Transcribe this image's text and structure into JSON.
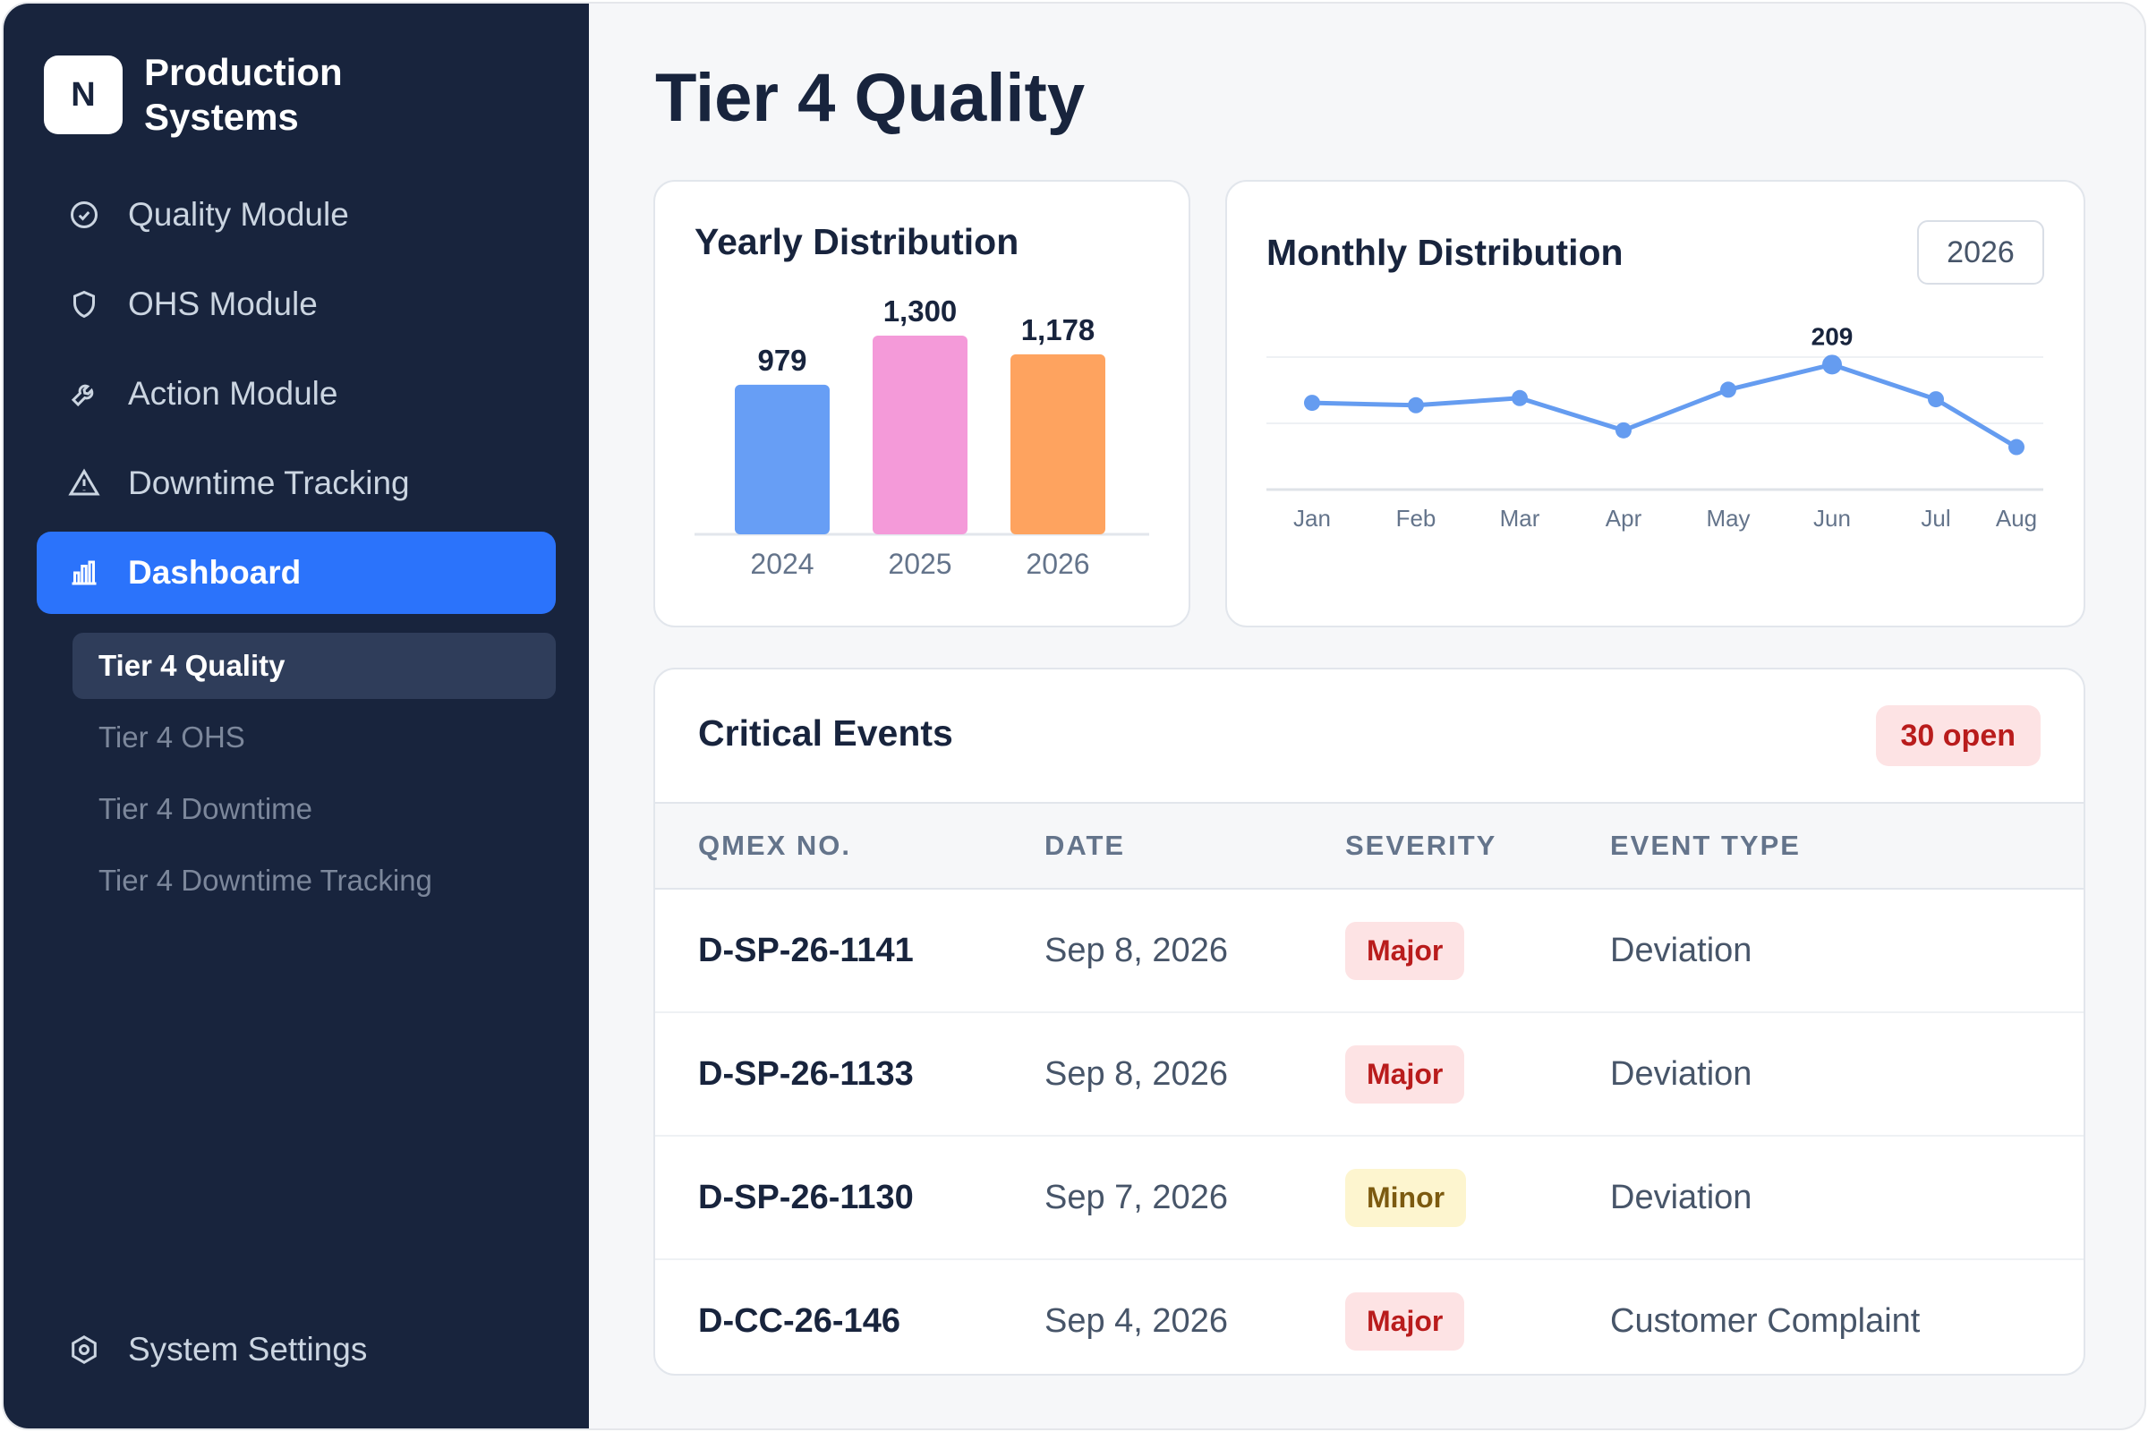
{
  "brand": {
    "logo_letter": "N",
    "name": "Production Systems"
  },
  "nav": {
    "items": [
      {
        "label": "Quality Module",
        "icon": "quality-icon"
      },
      {
        "label": "OHS Module",
        "icon": "shield-icon"
      },
      {
        "label": "Action Module",
        "icon": "wrench-icon"
      },
      {
        "label": "Downtime Tracking",
        "icon": "warning-icon"
      },
      {
        "label": "Dashboard",
        "icon": "bar-chart-icon",
        "active": true
      }
    ],
    "sub_items": [
      {
        "label": "Tier 4 Quality",
        "active": true
      },
      {
        "label": "Tier 4 OHS"
      },
      {
        "label": "Tier 4 Downtime"
      },
      {
        "label": "Tier 4 Downtime Tracking"
      }
    ],
    "settings": {
      "label": "System Settings",
      "icon": "settings-icon"
    }
  },
  "page": {
    "title": "Tier 4 Quality"
  },
  "yearly": {
    "title": "Yearly Distribution"
  },
  "monthly": {
    "title": "Monthly Distribution",
    "year_selector": "2026"
  },
  "events": {
    "title": "Critical Events",
    "badge": "30 open",
    "columns": [
      "QMEX NO.",
      "DATE",
      "SEVERITY",
      "EVENT TYPE"
    ],
    "rows": [
      {
        "qmex": "D-SP-26-1141",
        "date": "Sep 8, 2026",
        "severity": "Major",
        "type": "Deviation"
      },
      {
        "qmex": "D-SP-26-1133",
        "date": "Sep 8, 2026",
        "severity": "Major",
        "type": "Deviation"
      },
      {
        "qmex": "D-SP-26-1130",
        "date": "Sep 7, 2026",
        "severity": "Minor",
        "type": "Deviation"
      },
      {
        "qmex": "D-CC-26-146",
        "date": "Sep 4, 2026",
        "severity": "Major",
        "type": "Customer Complaint"
      }
    ]
  },
  "colors": {
    "sidebar_bg": "#18243d",
    "accent": "#2b73fb",
    "bar_2024": "#679ef5",
    "bar_2025": "#f49ad9",
    "bar_2026": "#fea35f",
    "line": "#659cf0",
    "major": "#b91c1c",
    "minor": "#7c5a10"
  },
  "chart_data": [
    {
      "type": "bar",
      "title": "Yearly Distribution",
      "categories": [
        "2024",
        "2025",
        "2026"
      ],
      "values": [
        979,
        1300,
        1178
      ],
      "data_labels": [
        "979",
        "1,300",
        "1,178"
      ],
      "ylim": [
        0,
        1300
      ],
      "grid": false
    },
    {
      "type": "line",
      "title": "Monthly Distribution",
      "x": [
        "Jan",
        "Feb",
        "Mar",
        "Apr",
        "May",
        "Jun",
        "Jul",
        "Aug"
      ],
      "values": [
        145,
        141,
        153,
        99,
        167,
        209,
        151,
        71
      ],
      "annotation": {
        "x": "Jun",
        "label": "209"
      },
      "ylim": [
        0,
        240
      ],
      "grid": true
    }
  ]
}
